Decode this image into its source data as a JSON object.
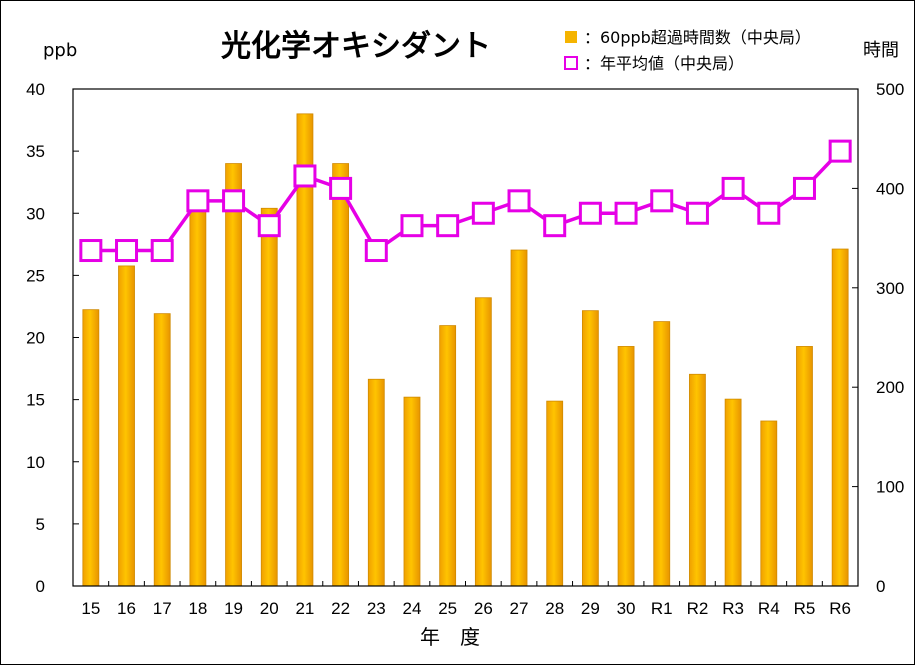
{
  "chart_data": {
    "type": "bar",
    "title": "光化学オキシダント",
    "xlabel": "年　度",
    "ylabel_left": "ppb",
    "ylabel_right": "時間",
    "categories": [
      "15",
      "16",
      "17",
      "18",
      "19",
      "20",
      "21",
      "22",
      "23",
      "24",
      "25",
      "26",
      "27",
      "28",
      "29",
      "30",
      "R1",
      "R2",
      "R3",
      "R4",
      "R5",
      "R6"
    ],
    "ylim_left": [
      0,
      40
    ],
    "ylim_right": [
      0,
      500
    ],
    "yticks_left": [
      "0",
      "5",
      "10",
      "15",
      "20",
      "25",
      "30",
      "35",
      "40"
    ],
    "yticks_right": [
      "0",
      "100",
      "200",
      "300",
      "400",
      "500"
    ],
    "series": [
      {
        "name": "：60ppb超過時間数（中央局）",
        "axis": "right",
        "kind": "bar",
        "color": "#F5A800",
        "values": [
          278,
          322,
          274,
          383,
          425,
          380,
          475,
          425,
          208,
          190,
          262,
          290,
          338,
          186,
          277,
          241,
          266,
          213,
          188,
          166,
          241,
          339
        ]
      },
      {
        "name": "：年平均値（中央局）",
        "axis": "left",
        "kind": "line",
        "color": "#E600E6",
        "values": [
          27,
          27,
          27,
          31,
          31,
          29,
          33,
          32,
          27,
          29,
          29,
          30,
          31,
          29,
          30,
          30,
          31,
          30,
          32,
          30,
          32,
          35
        ]
      }
    ],
    "legend_position": "top-right",
    "grid": false
  }
}
